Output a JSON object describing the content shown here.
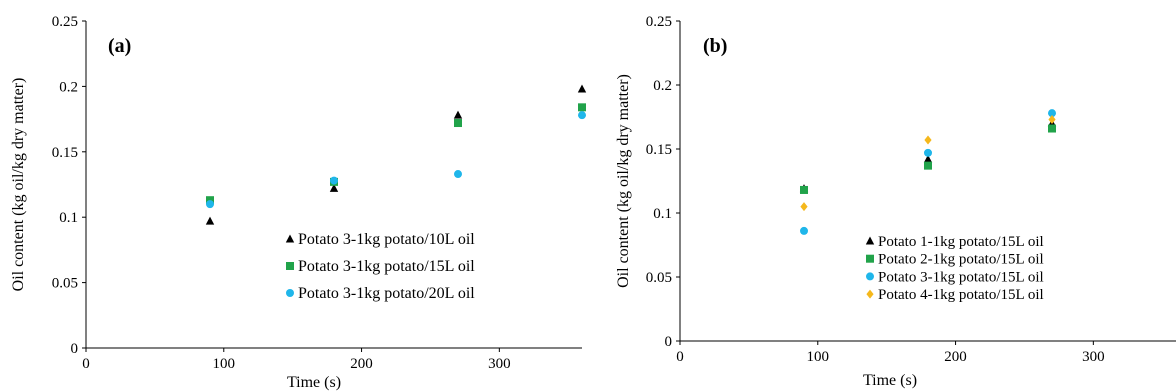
{
  "chart_data": [
    {
      "type": "scatter",
      "panel_label": "(a)",
      "xlabel": "Time (s)",
      "ylabel": "Oil content (kg oil/kg dry matter)",
      "xlim": [
        0,
        360
      ],
      "ylim": [
        0,
        0.25
      ],
      "xticks": [
        0,
        100,
        200,
        300
      ],
      "yticks": [
        0,
        0.05,
        0.1,
        0.15,
        0.2,
        0.25
      ],
      "ytick_labels": [
        "0",
        "0.05",
        "0.1",
        "0.15",
        "0.2",
        "0.25"
      ],
      "grid": false,
      "legend_position": "lower-right",
      "series": [
        {
          "name": "Potato 3-1kg potato/10L oil",
          "marker": "triangle",
          "color": "#000000",
          "x": [
            90,
            180,
            270,
            360
          ],
          "y": [
            0.097,
            0.122,
            0.178,
            0.198
          ]
        },
        {
          "name": "Potato 3-1kg potato/15L oil",
          "marker": "square",
          "color": "#21a34a",
          "x": [
            90,
            180,
            270,
            360
          ],
          "y": [
            0.113,
            0.127,
            0.172,
            0.184
          ]
        },
        {
          "name": "Potato 3-1kg potato/20L oil",
          "marker": "circle",
          "color": "#1fb6ea",
          "x": [
            90,
            180,
            270,
            360
          ],
          "y": [
            0.11,
            0.128,
            0.133,
            0.178
          ]
        }
      ]
    },
    {
      "type": "scatter",
      "panel_label": "(b)",
      "xlabel": "Time (s)",
      "ylabel": "Oil content (kg oil/kg dry matter)",
      "xlim": [
        0,
        360
      ],
      "ylim": [
        0,
        0.25
      ],
      "xticks": [
        0,
        100,
        200,
        300
      ],
      "yticks": [
        0,
        0.05,
        0.1,
        0.15,
        0.2,
        0.25
      ],
      "ytick_labels": [
        "0",
        "0.05",
        "0.1",
        "0.15",
        "0.2",
        "0.25"
      ],
      "grid": false,
      "legend_position": "lower-right",
      "series": [
        {
          "name": "Potato 1-1kg potato/15L oil",
          "marker": "triangle",
          "color": "#000000",
          "x": [
            90,
            180,
            270
          ],
          "y": [
            0.119,
            0.142,
            0.17
          ]
        },
        {
          "name": "Potato 2-1kg potato/15L oil",
          "marker": "square",
          "color": "#21a34a",
          "x": [
            90,
            180,
            270
          ],
          "y": [
            0.118,
            0.137,
            0.166
          ]
        },
        {
          "name": "Potato 3-1kg potato/15L oil",
          "marker": "circle",
          "color": "#1fb6ea",
          "x": [
            90,
            180,
            270
          ],
          "y": [
            0.086,
            0.147,
            0.178
          ]
        },
        {
          "name": "Potato 4-1kg potato/15L oil",
          "marker": "diamond",
          "color": "#f5b81c",
          "x": [
            90,
            180,
            270
          ],
          "y": [
            0.105,
            0.157,
            0.173
          ]
        }
      ]
    }
  ]
}
